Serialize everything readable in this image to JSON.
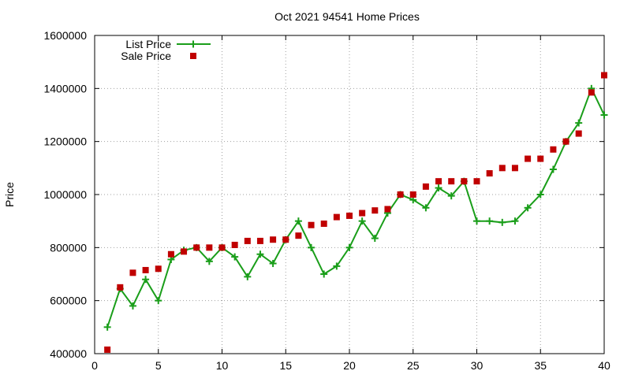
{
  "chart_data": {
    "type": "line",
    "title": "Oct 2021 94541 Home Prices",
    "xlabel": "",
    "ylabel": "Price",
    "xlim": [
      0,
      40
    ],
    "ylim": [
      400000,
      1600000
    ],
    "xticks": [
      0,
      5,
      10,
      15,
      20,
      25,
      30,
      35,
      40
    ],
    "yticks": [
      400000,
      600000,
      800000,
      1000000,
      1200000,
      1400000,
      1600000
    ],
    "grid": true,
    "legend_position": "top-left",
    "series": [
      {
        "name": "List Price",
        "style": "line+cross",
        "color": "#1a9e1a",
        "x": [
          1,
          2,
          3,
          4,
          5,
          6,
          7,
          8,
          9,
          10,
          11,
          12,
          13,
          14,
          15,
          16,
          17,
          18,
          19,
          20,
          21,
          22,
          23,
          24,
          25,
          26,
          27,
          28,
          29,
          30,
          31,
          32,
          33,
          34,
          35,
          36,
          37,
          38,
          39,
          40
        ],
        "y": [
          500000,
          645000,
          580000,
          680000,
          600000,
          755000,
          790000,
          800000,
          748000,
          800000,
          765000,
          690000,
          775000,
          740000,
          830000,
          900000,
          800000,
          700000,
          730000,
          800000,
          900000,
          835000,
          930000,
          1000000,
          980000,
          950000,
          1025000,
          995000,
          1050000,
          900000,
          900000,
          895000,
          900000,
          950000,
          1000000,
          1095000,
          1200000,
          1270000,
          1400000,
          1300000
        ]
      },
      {
        "name": "Sale Price",
        "style": "square",
        "color": "#c00000",
        "x": [
          1,
          2,
          3,
          4,
          5,
          6,
          7,
          8,
          9,
          10,
          11,
          12,
          13,
          14,
          15,
          16,
          17,
          18,
          19,
          20,
          21,
          22,
          23,
          24,
          25,
          26,
          27,
          28,
          29,
          30,
          31,
          32,
          33,
          34,
          35,
          36,
          37,
          38,
          39,
          40
        ],
        "y": [
          415000,
          650000,
          705000,
          715000,
          720000,
          775000,
          785000,
          800000,
          800000,
          800000,
          810000,
          825000,
          825000,
          830000,
          830000,
          845000,
          885000,
          890000,
          915000,
          920000,
          930000,
          940000,
          945000,
          1000000,
          1000000,
          1030000,
          1050000,
          1050000,
          1050000,
          1050000,
          1080000,
          1100000,
          1100000,
          1135000,
          1135000,
          1170000,
          1200000,
          1230000,
          1385000,
          1450000
        ]
      }
    ]
  }
}
